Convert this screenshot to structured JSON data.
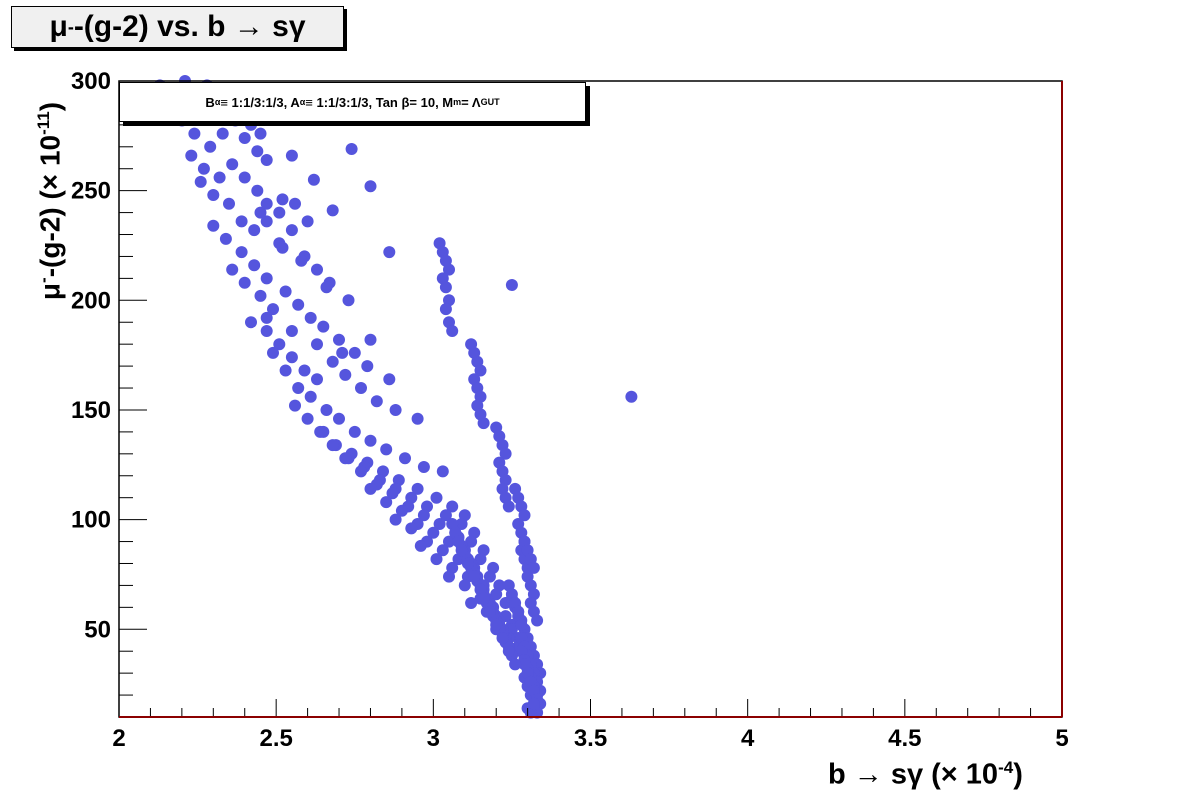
{
  "title": {
    "mu": "μ",
    "sup": "-",
    "rest": "-(g-2) vs. b → sγ"
  },
  "annotation": {
    "b": "B",
    "b_sub": "α",
    "b_rest": " ≡ 1:1/3:1/3, A",
    "a_sub": "α",
    "a_rest": " ≡ 1:1/3:1/3, Tan β= 10, M",
    "m_sub": "m",
    "m_rest": "= Λ",
    "gut_sub": "GUT"
  },
  "axes": {
    "xlabel_main": "b → sγ   (× 10",
    "xlabel_exp": "-4",
    "xlabel_close": ")",
    "ylabel_mu": "μ",
    "ylabel_sup": "-",
    "ylabel_main": "-(g-2)   (× 10",
    "ylabel_exp": "-11",
    "ylabel_close": ")"
  },
  "colors": {
    "marker": "#5555dd",
    "frame": "#000000",
    "right_axis": "#8b0000"
  },
  "chart_data": {
    "type": "scatter",
    "title": "μ--(g-2) vs. b → sγ",
    "xlabel": "b → sγ (× 10^-4)",
    "ylabel": "μ--(g-2) (× 10^-11)",
    "xlim": [
      2,
      5
    ],
    "ylim": [
      10,
      300
    ],
    "x_ticks": [
      "2",
      "2.5",
      "3",
      "3.5",
      "4",
      "4.5",
      "5"
    ],
    "y_ticks": [
      "50",
      "100",
      "150",
      "200",
      "250",
      "300"
    ],
    "grid": false,
    "x": [
      2.13,
      2.18,
      2.21,
      2.24,
      2.28,
      2.31,
      2.35,
      2.38,
      2.42,
      2.45,
      2.2,
      2.24,
      2.29,
      2.33,
      2.37,
      2.4,
      2.44,
      2.47,
      2.23,
      2.27,
      2.32,
      2.36,
      2.4,
      2.44,
      2.47,
      2.52,
      2.26,
      2.3,
      2.35,
      2.39,
      2.43,
      2.47,
      2.51,
      2.56,
      2.6,
      2.3,
      2.34,
      2.39,
      2.43,
      2.47,
      2.51,
      2.55,
      2.59,
      2.63,
      2.67,
      2.36,
      2.4,
      2.45,
      2.49,
      2.53,
      2.57,
      2.61,
      2.65,
      2.7,
      2.75,
      2.8,
      2.42,
      2.47,
      2.51,
      2.55,
      2.59,
      2.63,
      2.68,
      2.72,
      2.77,
      2.82,
      2.88,
      2.95,
      2.49,
      2.53,
      2.57,
      2.61,
      2.66,
      2.7,
      2.75,
      2.8,
      2.85,
      2.91,
      2.97,
      3.03,
      2.56,
      2.6,
      2.65,
      2.69,
      2.74,
      2.79,
      2.84,
      2.89,
      2.95,
      3.01,
      3.06,
      3.1,
      2.64,
      2.68,
      2.73,
      2.78,
      2.83,
      2.88,
      2.93,
      2.98,
      3.04,
      3.09,
      3.13,
      2.72,
      2.77,
      2.82,
      2.87,
      2.92,
      2.97,
      3.02,
      3.07,
      3.12,
      3.16,
      2.8,
      2.85,
      2.9,
      2.95,
      3.0,
      3.05,
      3.1,
      3.15,
      3.19,
      2.88,
      2.93,
      2.98,
      3.03,
      3.08,
      3.13,
      3.18,
      3.21,
      2.96,
      3.01,
      3.06,
      3.11,
      3.16,
      3.2,
      3.23,
      3.05,
      3.1,
      3.15,
      3.19,
      3.23,
      3.25,
      3.12,
      3.17,
      3.21,
      3.25,
      3.27,
      3.2,
      3.24,
      3.27,
      3.29,
      3.26,
      3.29,
      3.31,
      2.5,
      2.55,
      2.62,
      2.68,
      2.74,
      2.8,
      2.86,
      2.45,
      2.52,
      2.58,
      2.66,
      2.73,
      2.47,
      2.55,
      2.63,
      2.71,
      2.79,
      2.86,
      3.25,
      3.63,
      3.02,
      3.03,
      3.04,
      3.05,
      3.03,
      3.04,
      3.05,
      3.04,
      3.05,
      3.06,
      3.12,
      3.13,
      3.14,
      3.15,
      3.13,
      3.14,
      3.15,
      3.14,
      3.15,
      3.16,
      3.2,
      3.21,
      3.22,
      3.23,
      3.21,
      3.22,
      3.23,
      3.22,
      3.23,
      3.24,
      3.26,
      3.27,
      3.28,
      3.29,
      3.27,
      3.28,
      3.29,
      3.28,
      3.29,
      3.3,
      3.29,
      3.3,
      3.31,
      3.32,
      3.3,
      3.31,
      3.32,
      3.31,
      3.32,
      3.33,
      3.27,
      3.28,
      3.29,
      3.3,
      3.31,
      3.32,
      3.33,
      3.34,
      3.28,
      3.29,
      3.3,
      3.31,
      3.32,
      3.33,
      3.34,
      3.28,
      3.29,
      3.3,
      3.31,
      3.32,
      3.33,
      3.34,
      3.29,
      3.3,
      3.31,
      3.32,
      3.33,
      3.29,
      3.3,
      3.31,
      3.32,
      3.33,
      3.3,
      3.31,
      3.32,
      3.25,
      3.26,
      3.27,
      3.28,
      3.24,
      3.25,
      3.26,
      3.27,
      3.22,
      3.23,
      3.24,
      3.25,
      3.26,
      3.2,
      3.21,
      3.22,
      3.23,
      3.24,
      3.18,
      3.19,
      3.2,
      3.21,
      3.22,
      3.16,
      3.17,
      3.18,
      3.19,
      3.2,
      3.14,
      3.15,
      3.16,
      3.17,
      3.18,
      3.12,
      3.13,
      3.14,
      3.15,
      3.16,
      3.1,
      3.11,
      3.12,
      3.13,
      3.08,
      3.09,
      3.1,
      3.11,
      3.06,
      3.07,
      3.08,
      3.09
    ],
    "y": [
      298,
      296,
      300,
      294,
      298,
      292,
      288,
      284,
      280,
      276,
      282,
      276,
      270,
      276,
      282,
      274,
      268,
      264,
      266,
      260,
      256,
      262,
      256,
      250,
      244,
      246,
      254,
      248,
      244,
      236,
      232,
      236,
      240,
      244,
      236,
      234,
      228,
      222,
      216,
      210,
      226,
      232,
      220,
      214,
      208,
      214,
      208,
      202,
      196,
      204,
      198,
      192,
      188,
      182,
      176,
      182,
      190,
      186,
      180,
      174,
      168,
      164,
      172,
      166,
      160,
      154,
      150,
      146,
      176,
      168,
      160,
      156,
      150,
      146,
      140,
      136,
      132,
      128,
      124,
      122,
      152,
      146,
      140,
      134,
      130,
      126,
      122,
      118,
      114,
      110,
      106,
      102,
      140,
      134,
      128,
      124,
      118,
      114,
      110,
      106,
      102,
      98,
      94,
      128,
      122,
      116,
      112,
      106,
      102,
      98,
      94,
      90,
      86,
      114,
      108,
      104,
      98,
      94,
      90,
      86,
      82,
      78,
      100,
      96,
      90,
      86,
      82,
      78,
      74,
      70,
      88,
      82,
      78,
      74,
      70,
      66,
      62,
      74,
      70,
      64,
      60,
      56,
      52,
      62,
      58,
      54,
      50,
      46,
      50,
      46,
      42,
      38,
      40,
      36,
      32,
      284,
      266,
      255,
      241,
      269,
      252,
      222,
      240,
      224,
      218,
      206,
      200,
      192,
      186,
      180,
      176,
      170,
      164,
      207,
      156,
      226,
      222,
      218,
      214,
      210,
      206,
      200,
      196,
      190,
      186,
      180,
      176,
      172,
      168,
      164,
      160,
      156,
      152,
      148,
      144,
      142,
      138,
      134,
      130,
      126,
      122,
      118,
      114,
      110,
      106,
      114,
      110,
      106,
      102,
      98,
      94,
      90,
      86,
      82,
      78,
      90,
      86,
      82,
      78,
      74,
      70,
      66,
      62,
      58,
      54,
      58,
      54,
      50,
      46,
      42,
      38,
      34,
      30,
      46,
      42,
      38,
      34,
      30,
      26,
      22,
      40,
      36,
      32,
      28,
      24,
      20,
      16,
      28,
      24,
      20,
      16,
      12,
      34,
      30,
      26,
      22,
      18,
      14,
      12,
      16,
      64,
      60,
      56,
      52,
      70,
      66,
      62,
      58,
      50,
      46,
      42,
      38,
      34,
      56,
      52,
      48,
      44,
      40,
      62,
      58,
      54,
      50,
      46,
      68,
      64,
      60,
      56,
      52,
      74,
      70,
      66,
      62,
      58,
      80,
      76,
      72,
      68,
      64,
      86,
      82,
      78,
      74,
      92,
      88,
      84,
      80,
      98,
      94,
      90,
      86
    ]
  }
}
